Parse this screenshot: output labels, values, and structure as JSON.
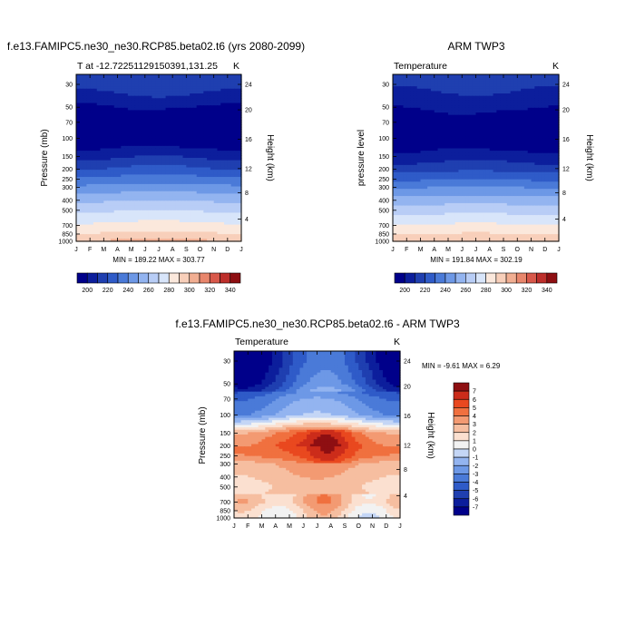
{
  "chart_data": [
    {
      "type": "heatmap",
      "title": "f.e13.FAMIPC5.ne30_ne30.RCP85.beta02.t6 (yrs 2080-2099)",
      "left_label": "T at -12.72251129150391,131.25",
      "right_label": "K",
      "ylabel": "Pressure (mb)",
      "y2label": "Height (km)",
      "x_ticks": [
        "J",
        "F",
        "M",
        "A",
        "M",
        "J",
        "J",
        "A",
        "S",
        "O",
        "N",
        "D",
        "J"
      ],
      "y_ticks": [
        30,
        50,
        70,
        100,
        150,
        200,
        250,
        300,
        400,
        500,
        700,
        850,
        1000
      ],
      "y2_ticks": [
        24,
        20,
        16,
        12,
        8,
        4
      ],
      "stats": "MIN = 189.22 MAX = 303.77",
      "colorbar_labels": [
        "200",
        "220",
        "240",
        "260",
        "280",
        "300",
        "320",
        "340"
      ],
      "profile": [
        [
          30,
          216
        ],
        [
          50,
          200
        ],
        [
          70,
          192
        ],
        [
          100,
          192
        ],
        [
          150,
          208
        ],
        [
          200,
          222
        ],
        [
          250,
          234
        ],
        [
          300,
          244
        ],
        [
          400,
          259
        ],
        [
          500,
          269
        ],
        [
          700,
          283
        ],
        [
          850,
          292
        ],
        [
          1000,
          302
        ]
      ],
      "seasonal_amplitude": 3
    },
    {
      "type": "heatmap",
      "title": "ARM TWP3",
      "left_label": "Temperature",
      "right_label": "K",
      "ylabel": "pressure level",
      "y2label": "Height (km)",
      "x_ticks": [
        "J",
        "F",
        "M",
        "A",
        "M",
        "J",
        "J",
        "A",
        "S",
        "O",
        "N",
        "D",
        "J"
      ],
      "y_ticks": [
        30,
        50,
        70,
        100,
        150,
        200,
        250,
        300,
        400,
        500,
        700,
        850,
        1000
      ],
      "y2_ticks": [
        24,
        20,
        16,
        12,
        8,
        4
      ],
      "stats": "MIN = 191.84 MAX = 302.19",
      "colorbar_labels": [
        "200",
        "220",
        "240",
        "260",
        "280",
        "300",
        "320",
        "340"
      ],
      "profile": [
        [
          30,
          213
        ],
        [
          50,
          202
        ],
        [
          70,
          195
        ],
        [
          100,
          193
        ],
        [
          150,
          204
        ],
        [
          200,
          217
        ],
        [
          250,
          229
        ],
        [
          300,
          240
        ],
        [
          400,
          255
        ],
        [
          500,
          266
        ],
        [
          700,
          281
        ],
        [
          850,
          290
        ],
        [
          1000,
          300
        ]
      ],
      "seasonal_amplitude": 2.5
    },
    {
      "type": "heatmap",
      "title": "f.e13.FAMIPC5.ne30_ne30.RCP85.beta02.t6 - ARM TWP3",
      "left_label": "Temperature",
      "right_label": "K",
      "ylabel": "Pressure (mb)",
      "y2label": "Height (km)",
      "x_ticks": [
        "J",
        "F",
        "M",
        "A",
        "M",
        "J",
        "J",
        "A",
        "S",
        "O",
        "N",
        "D",
        "J"
      ],
      "y_ticks": [
        30,
        50,
        70,
        100,
        150,
        200,
        250,
        300,
        400,
        500,
        700,
        850,
        1000
      ],
      "y2_ticks": [
        24,
        20,
        16,
        12,
        8,
        4
      ],
      "stats": "MIN =  -9.61 MAX =   6.29",
      "colorbar_labels": [
        "7",
        "6",
        "5",
        "4",
        "3",
        "2",
        "1",
        "0",
        "-1",
        "-2",
        "-3",
        "-4",
        "-5",
        "-6",
        "-7"
      ],
      "profile": [
        [
          30,
          -6
        ],
        [
          50,
          -5
        ],
        [
          70,
          -3
        ],
        [
          100,
          -2
        ],
        [
          150,
          4
        ],
        [
          200,
          5
        ],
        [
          250,
          4.5
        ],
        [
          300,
          3
        ],
        [
          400,
          2.5
        ],
        [
          500,
          2
        ],
        [
          700,
          2.5
        ],
        [
          850,
          1.5
        ],
        [
          1000,
          1
        ]
      ],
      "seasonal_amplitude": 1.2
    }
  ],
  "colors": {
    "abs_scale": [
      "#00008a",
      "#0c1e9c",
      "#1f3fb0",
      "#2f5bc8",
      "#4a7ad8",
      "#6d98e6",
      "#93b4f0",
      "#b8cdf6",
      "#d8e5fa",
      "#fbe8dc",
      "#f8cfba",
      "#f1ae92",
      "#e8866c",
      "#d8584a",
      "#bd2f2b",
      "#8e0f12"
    ],
    "diff_scale": [
      "#00008a",
      "#0c1e9c",
      "#1f3fb0",
      "#2f5bc8",
      "#4a7ad8",
      "#6d98e6",
      "#93b4f0",
      "#c4d6f6",
      "#f2f2f2",
      "#fbe0d0",
      "#f6bea0",
      "#f39a72",
      "#f0703f",
      "#e9481f",
      "#cc2c1a",
      "#8e0f12"
    ]
  }
}
